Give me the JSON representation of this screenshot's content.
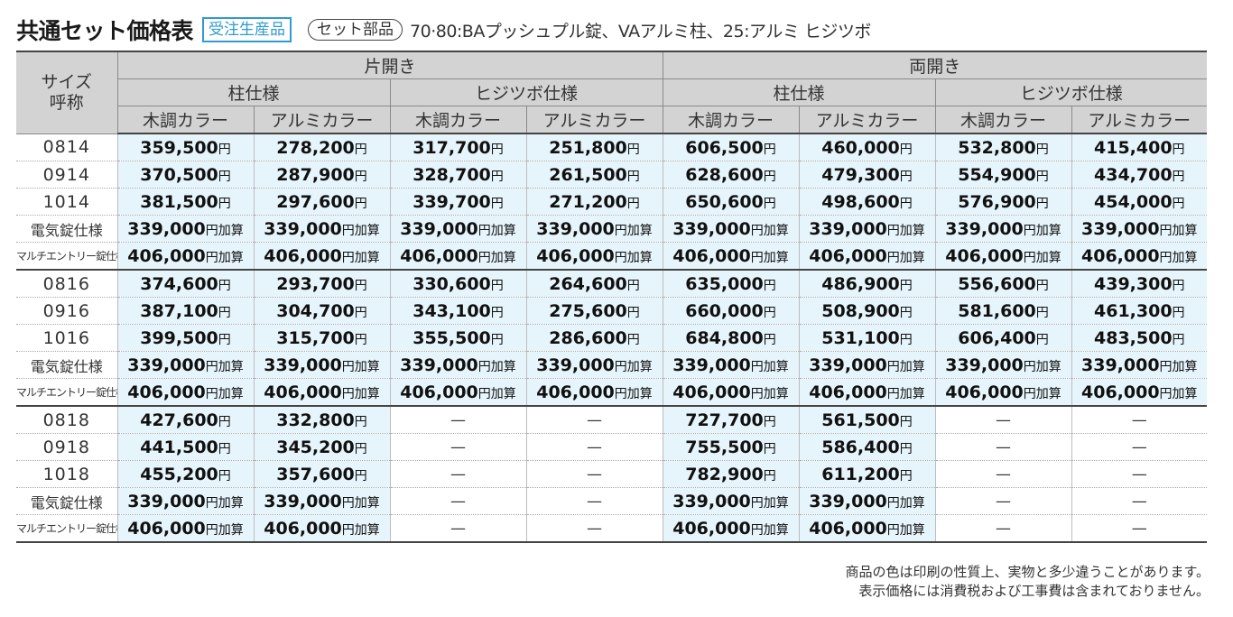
{
  "header": {
    "title": "共通セット価格表",
    "badge": "受注生産品",
    "set_label": "セット部品",
    "subtitle": "70·80:BAプッシュプル錠、VAアルミ柱、25:アルミ ヒジツボ"
  },
  "table": {
    "size_header": "サイズ\n呼称",
    "open_types": [
      "片開き",
      "両開き"
    ],
    "pillar_types": [
      "柱仕様",
      "ヒジツボ仕様",
      "柱仕様",
      "ヒジツボ仕様"
    ],
    "colors": [
      "木調カラー",
      "アルミカラー",
      "木調カラー",
      "アルミカラー",
      "木調カラー",
      "アルミカラー",
      "木調カラー",
      "アルミカラー"
    ],
    "yen": "円",
    "yen_add": "円加算",
    "groups": [
      {
        "rows": [
          {
            "size": "0814",
            "values": [
              "359,500",
              "278,200",
              "317,700",
              "251,800",
              "606,500",
              "460,000",
              "532,800",
              "415,400"
            ]
          },
          {
            "size": "0914",
            "values": [
              "370,500",
              "287,900",
              "328,700",
              "261,500",
              "628,600",
              "479,300",
              "554,900",
              "434,700"
            ]
          },
          {
            "size": "1014",
            "values": [
              "381,500",
              "297,600",
              "339,700",
              "271,200",
              "650,600",
              "498,600",
              "576,900",
              "454,000"
            ]
          },
          {
            "size": "電気錠仕様",
            "add": true,
            "values": [
              "339,000",
              "339,000",
              "339,000",
              "339,000",
              "339,000",
              "339,000",
              "339,000",
              "339,000"
            ]
          },
          {
            "size": "マルチエントリー錠仕様",
            "add": true,
            "values": [
              "406,000",
              "406,000",
              "406,000",
              "406,000",
              "406,000",
              "406,000",
              "406,000",
              "406,000"
            ]
          }
        ]
      },
      {
        "rows": [
          {
            "size": "0816",
            "values": [
              "374,600",
              "293,700",
              "330,600",
              "264,600",
              "635,000",
              "486,900",
              "556,600",
              "439,300"
            ]
          },
          {
            "size": "0916",
            "values": [
              "387,100",
              "304,700",
              "343,100",
              "275,600",
              "660,000",
              "508,900",
              "581,600",
              "461,300"
            ]
          },
          {
            "size": "1016",
            "values": [
              "399,500",
              "315,700",
              "355,500",
              "286,600",
              "684,800",
              "531,100",
              "606,400",
              "483,500"
            ]
          },
          {
            "size": "電気錠仕様",
            "add": true,
            "values": [
              "339,000",
              "339,000",
              "339,000",
              "339,000",
              "339,000",
              "339,000",
              "339,000",
              "339,000"
            ]
          },
          {
            "size": "マルチエントリー錠仕様",
            "add": true,
            "values": [
              "406,000",
              "406,000",
              "406,000",
              "406,000",
              "406,000",
              "406,000",
              "406,000",
              "406,000"
            ]
          }
        ]
      },
      {
        "rows": [
          {
            "size": "0818",
            "values": [
              "427,600",
              "332,800",
              "—",
              "—",
              "727,700",
              "561,500",
              "—",
              "—"
            ]
          },
          {
            "size": "0918",
            "values": [
              "441,500",
              "345,200",
              "—",
              "—",
              "755,500",
              "586,400",
              "—",
              "—"
            ]
          },
          {
            "size": "1018",
            "values": [
              "455,200",
              "357,600",
              "—",
              "—",
              "782,900",
              "611,200",
              "—",
              "—"
            ]
          },
          {
            "size": "電気錠仕様",
            "add": true,
            "values": [
              "339,000",
              "339,000",
              "—",
              "—",
              "339,000",
              "339,000",
              "—",
              "—"
            ]
          },
          {
            "size": "マルチエントリー錠仕様",
            "add": true,
            "values": [
              "406,000",
              "406,000",
              "—",
              "—",
              "406,000",
              "406,000",
              "—",
              "—"
            ]
          }
        ]
      }
    ]
  },
  "notes": [
    "商品の色は印刷の性質上、実物と多少違うことがあります。",
    "表示価格には消費税および工事費は含まれておりません。"
  ],
  "colors": {
    "accent": "#2f9bd0",
    "cell_bg": "#e6f4fb",
    "header_bg": "#d3d3d3"
  }
}
